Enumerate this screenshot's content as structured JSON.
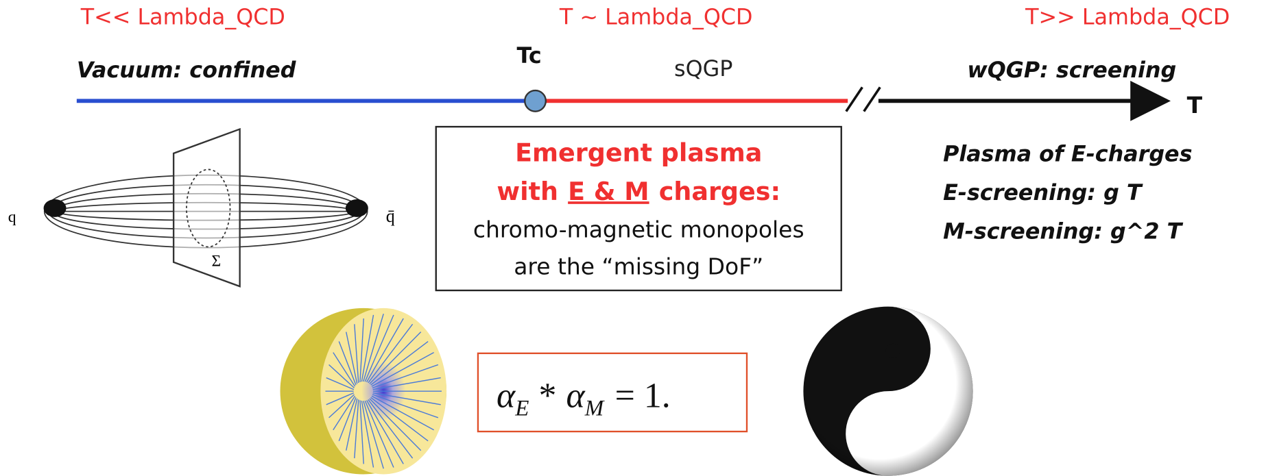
{
  "regimes": [
    {
      "condition": "T<< Lambda_QCD",
      "label": "Vacuum: confined"
    },
    {
      "condition": "T ~ Lambda_QCD",
      "label": "sQGP"
    },
    {
      "condition": "T>> Lambda_QCD",
      "label": "wQGP: screening"
    }
  ],
  "axis": {
    "critical": "Tc",
    "variable": "T"
  },
  "flux_tube": {
    "quark": "q",
    "antiquark": "q̄",
    "surface": "Σ"
  },
  "center_box": {
    "line1": "Emergent plasma",
    "line2": [
      "with",
      "E & M",
      "charges:"
    ],
    "line3": "chromo-magnetic monopoles",
    "line4": "are the “missing DoF”"
  },
  "right_notes": [
    "Plasma of E-charges",
    "E-screening: g T",
    "M-screening: g^2 T"
  ],
  "formula": {
    "symbol1": "α",
    "sub1": "E",
    "operator": "*",
    "symbol2": "α",
    "sub2": "M",
    "rhs": "= 1."
  }
}
